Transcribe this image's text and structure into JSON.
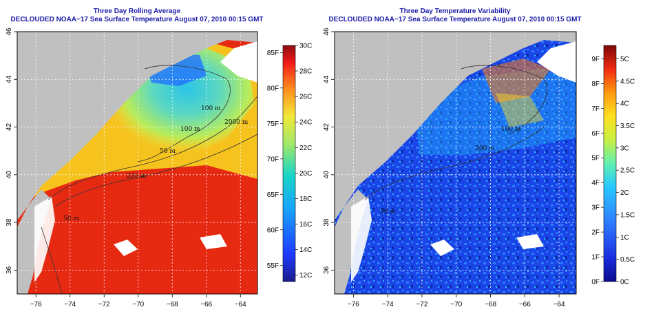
{
  "left_panel": {
    "title": "Three Day Rolling Average",
    "subtitle": "DECLOUDED NOAA−17 Sea Surface Temperature August 07, 2010 00:15 GMT",
    "colorbar": {
      "f_labels": [
        "85F",
        "80F",
        "75F",
        "70F",
        "65F",
        "60F",
        "55F"
      ],
      "f_values": [
        85,
        80,
        75,
        70,
        65,
        60,
        55
      ],
      "c_labels": [
        "30C",
        "28C",
        "26C",
        "24C",
        "22C",
        "20C",
        "18C",
        "16C",
        "14C",
        "12C"
      ],
      "c_values": [
        30,
        28,
        26,
        24,
        22,
        20,
        18,
        16,
        14,
        12
      ],
      "range_c": [
        11.5,
        30
      ]
    },
    "contours": [
      "100 m",
      "100 m",
      "2000 m",
      "50 m",
      "200 m",
      "50 m"
    ]
  },
  "right_panel": {
    "title": "Three Day Temperature Variability",
    "subtitle": "DECLOUDED NOAA−17 Sea Surface Temperature August 07, 2010 00:15 GMT",
    "colorbar": {
      "f_labels": [
        "9F",
        "8F",
        "7F",
        "6F",
        "5F",
        "4F",
        "3F",
        "2F",
        "1F",
        "0F"
      ],
      "f_values": [
        9,
        8,
        7,
        6,
        5,
        4,
        3,
        2,
        1,
        0
      ],
      "c_labels": [
        "5C",
        "4.5C",
        "4C",
        "3.5C",
        "3C",
        "2.5C",
        "2C",
        "1.5C",
        "1C",
        "0.5C",
        "0C"
      ],
      "c_values": [
        5,
        4.5,
        4,
        3.5,
        3,
        2.5,
        2,
        1.5,
        1,
        0.5,
        0
      ],
      "range_c": [
        0,
        5.3
      ]
    },
    "contours": [
      "100 m",
      "200 m",
      "50 m"
    ]
  },
  "axes": {
    "lon_labels": [
      "−76",
      "−74",
      "−72",
      "−70",
      "−68",
      "−66",
      "−64"
    ],
    "lon_values": [
      -76,
      -74,
      -72,
      -70,
      -68,
      -66,
      -64
    ],
    "lat_labels": [
      "36",
      "38",
      "40",
      "42",
      "44",
      "46"
    ],
    "lat_values": [
      36,
      38,
      40,
      42,
      44,
      46
    ],
    "lon_range": [
      -77.1,
      -63.0
    ],
    "lat_range": [
      35.0,
      46.0
    ]
  },
  "colors": {
    "title": "#1a1aa8",
    "land": "#c0c0c0",
    "cloud": "#ffffff"
  }
}
